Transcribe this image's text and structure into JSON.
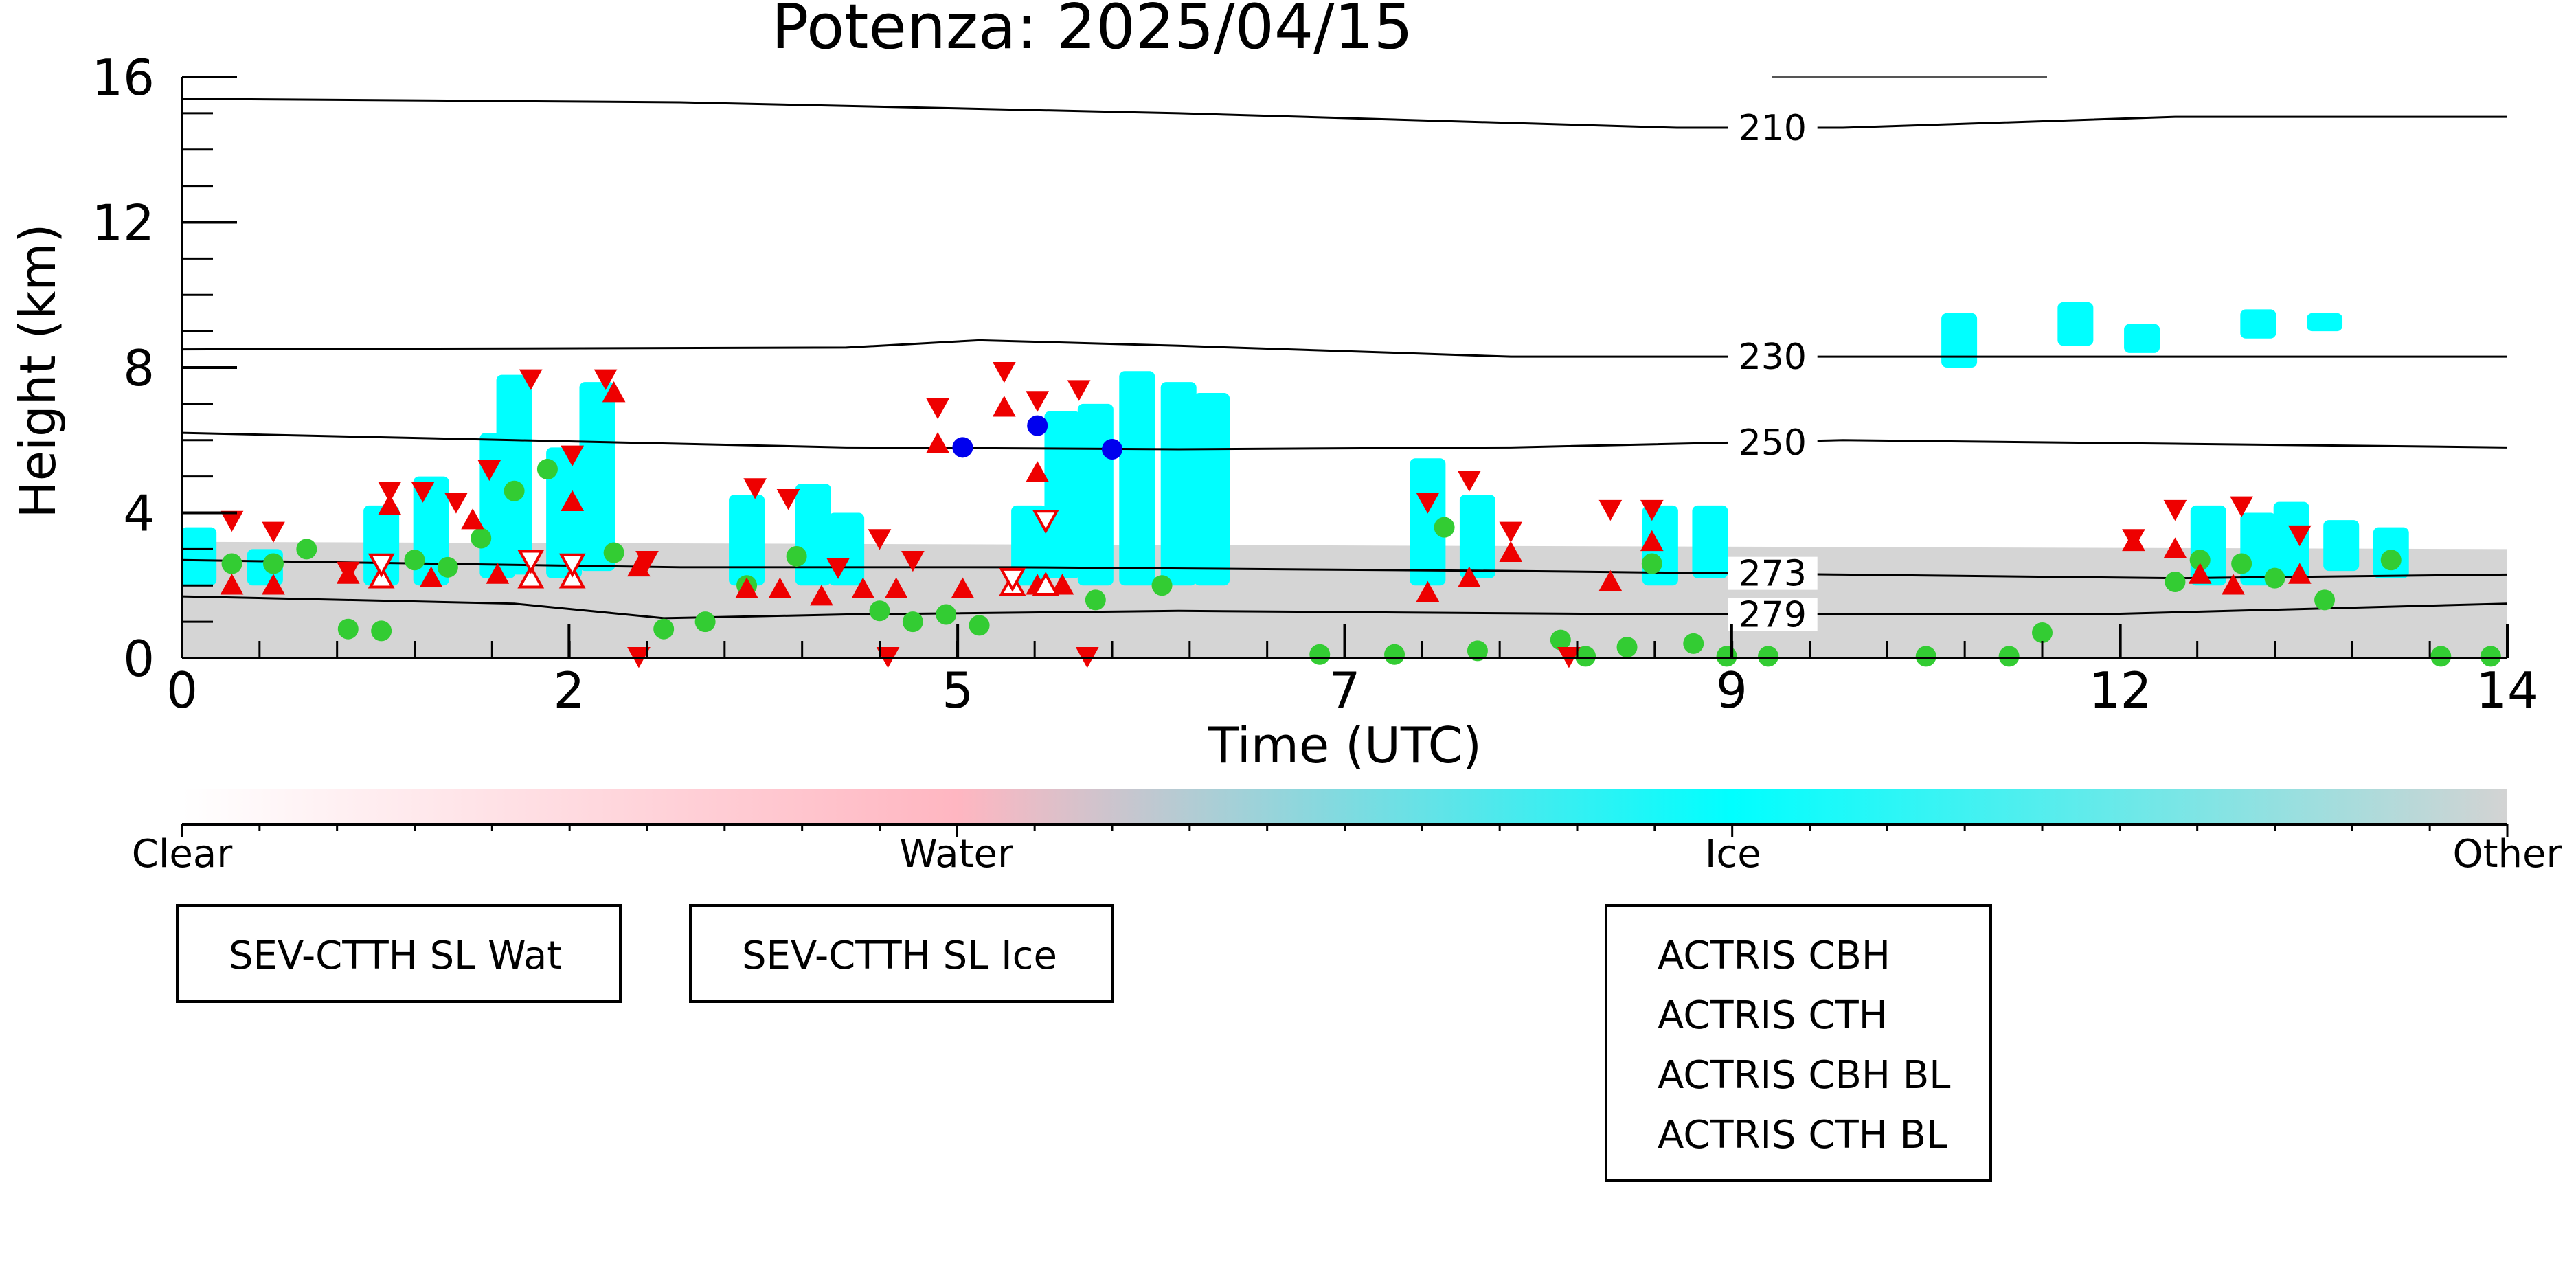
{
  "chart_data": {
    "type": "scatter",
    "title": "Potenza: 2025/04/15",
    "xlabel": "Time (UTC)",
    "ylabel": "Height (km)",
    "xlim": [
      0,
      14
    ],
    "ylim": [
      0,
      16
    ],
    "x_ticks": [
      {
        "value": 0,
        "label": "0"
      },
      {
        "value": 2.33,
        "label": "2"
      },
      {
        "value": 4.67,
        "label": "5"
      },
      {
        "value": 7.0,
        "label": "7"
      },
      {
        "value": 9.33,
        "label": "9"
      },
      {
        "value": 11.67,
        "label": "12"
      },
      {
        "value": 14.0,
        "label": "14"
      }
    ],
    "y_ticks": [
      {
        "value": 0,
        "label": "0"
      },
      {
        "value": 4,
        "label": "4"
      },
      {
        "value": 8,
        "label": "8"
      },
      {
        "value": 12,
        "label": "12"
      },
      {
        "value": 16,
        "label": "16"
      }
    ],
    "grid": false,
    "colorbar": {
      "labels": [
        {
          "value": 0,
          "label": "Clear"
        },
        {
          "value": 0.333,
          "label": "Water"
        },
        {
          "value": 0.667,
          "label": "Ice"
        },
        {
          "value": 1.0,
          "label": "Other"
        }
      ],
      "colors": [
        "#ffffff",
        "#ffb6c1",
        "#00ffff",
        "#d3d3d3"
      ]
    },
    "temperature_contours": [
      {
        "label": "210",
        "label_x": 9.35,
        "points": [
          [
            0,
            15.4
          ],
          [
            3,
            15.3
          ],
          [
            6,
            15.0
          ],
          [
            9,
            14.6
          ],
          [
            10,
            14.6
          ],
          [
            12,
            14.9
          ],
          [
            14,
            14.9
          ]
        ]
      },
      {
        "label": "230",
        "label_x": 9.35,
        "points": [
          [
            0,
            8.5
          ],
          [
            4,
            8.55
          ],
          [
            4.8,
            8.75
          ],
          [
            6,
            8.6
          ],
          [
            8,
            8.3
          ],
          [
            10,
            8.3
          ],
          [
            14,
            8.3
          ]
        ]
      },
      {
        "label": "250",
        "label_x": 9.35,
        "points": [
          [
            0,
            6.2
          ],
          [
            2,
            6.0
          ],
          [
            4,
            5.8
          ],
          [
            6,
            5.75
          ],
          [
            8,
            5.8
          ],
          [
            10,
            6.0
          ],
          [
            12,
            5.9
          ],
          [
            14,
            5.8
          ]
        ]
      },
      {
        "label": "273",
        "label_x": 9.35,
        "points": [
          [
            0,
            2.7
          ],
          [
            3,
            2.5
          ],
          [
            5,
            2.5
          ],
          [
            8,
            2.4
          ],
          [
            10,
            2.3
          ],
          [
            12,
            2.2
          ],
          [
            14,
            2.3
          ]
        ]
      },
      {
        "label": "279",
        "label_x": 9.35,
        "points": [
          [
            0,
            1.7
          ],
          [
            2,
            1.5
          ],
          [
            2.9,
            1.1
          ],
          [
            4,
            1.2
          ],
          [
            6,
            1.3
          ],
          [
            9,
            1.2
          ],
          [
            11.5,
            1.2
          ],
          [
            14,
            1.5
          ]
        ]
      }
    ],
    "cloud_mask": {
      "other_layer": [
        [
          0,
          0,
          3.2
        ],
        [
          14,
          0,
          3.0
        ]
      ],
      "ice_regions": [
        [
          0.1,
          2.0,
          3.6
        ],
        [
          0.5,
          2.0,
          3.0
        ],
        [
          1.2,
          2.0,
          4.2
        ],
        [
          1.5,
          2.0,
          5.0
        ],
        [
          1.9,
          2.2,
          6.2
        ],
        [
          2.0,
          2.3,
          7.8
        ],
        [
          2.3,
          2.2,
          5.8
        ],
        [
          2.5,
          2.4,
          7.6
        ],
        [
          3.4,
          2.0,
          4.5
        ],
        [
          3.8,
          2.0,
          4.8
        ],
        [
          4.0,
          2.0,
          4.0
        ],
        [
          5.1,
          2.0,
          4.2
        ],
        [
          5.3,
          2.2,
          6.8
        ],
        [
          5.5,
          2.0,
          7.0
        ],
        [
          5.75,
          2.0,
          7.9
        ],
        [
          6.0,
          2.0,
          7.6
        ],
        [
          6.2,
          2.0,
          7.3
        ],
        [
          7.5,
          2.0,
          5.5
        ],
        [
          7.8,
          2.2,
          4.5
        ],
        [
          8.9,
          2.0,
          4.2
        ],
        [
          9.2,
          2.2,
          4.2
        ],
        [
          10.7,
          8.0,
          9.5
        ],
        [
          11.4,
          8.6,
          9.8
        ],
        [
          11.8,
          8.4,
          9.2
        ],
        [
          12.2,
          2.0,
          4.2
        ],
        [
          12.5,
          2.0,
          4.0
        ],
        [
          12.7,
          2.2,
          4.3
        ],
        [
          13.0,
          2.4,
          3.8
        ],
        [
          13.3,
          2.2,
          3.6
        ],
        [
          12.5,
          8.8,
          9.6
        ],
        [
          12.9,
          9.0,
          9.5
        ]
      ]
    },
    "series": [
      {
        "name": "SEV-CTTH SL Wat",
        "marker": "circle",
        "color": "#33cc33",
        "points": [
          [
            0.3,
            2.6
          ],
          [
            0.55,
            2.6
          ],
          [
            0.75,
            3.0
          ],
          [
            1.0,
            0.8
          ],
          [
            1.2,
            0.75
          ],
          [
            1.4,
            2.7
          ],
          [
            1.6,
            2.5
          ],
          [
            1.8,
            3.3
          ],
          [
            2.0,
            4.6
          ],
          [
            2.2,
            5.2
          ],
          [
            2.6,
            2.9
          ],
          [
            2.9,
            0.8
          ],
          [
            3.15,
            1.0
          ],
          [
            3.4,
            2.0
          ],
          [
            3.7,
            2.8
          ],
          [
            4.2,
            1.3
          ],
          [
            4.4,
            1.0
          ],
          [
            4.6,
            1.2
          ],
          [
            4.8,
            0.9
          ],
          [
            5.5,
            1.6
          ],
          [
            5.9,
            2.0
          ],
          [
            6.85,
            0.1
          ],
          [
            7.3,
            0.1
          ],
          [
            7.6,
            3.6
          ],
          [
            7.8,
            0.2
          ],
          [
            8.3,
            0.5
          ],
          [
            8.45,
            0.05
          ],
          [
            8.7,
            0.3
          ],
          [
            8.85,
            2.6
          ],
          [
            9.1,
            0.4
          ],
          [
            9.3,
            0.05
          ],
          [
            9.55,
            0.05
          ],
          [
            10.5,
            0.05
          ],
          [
            11.0,
            0.05
          ],
          [
            11.2,
            0.7
          ],
          [
            12.0,
            2.1
          ],
          [
            12.15,
            2.7
          ],
          [
            12.4,
            2.6
          ],
          [
            12.6,
            2.2
          ],
          [
            12.9,
            1.6
          ],
          [
            13.3,
            2.7
          ],
          [
            13.6,
            0.05
          ],
          [
            13.9,
            0.05
          ]
        ]
      },
      {
        "name": "SEV-CTTH SL Ice",
        "marker": "circle",
        "color": "#0000ee",
        "points": [
          [
            4.7,
            5.8
          ],
          [
            5.15,
            6.4
          ],
          [
            5.6,
            5.75
          ]
        ]
      },
      {
        "name": "ACTRIS CBH",
        "marker": "triangle-up",
        "color": "#ee0000",
        "points": [
          [
            0.3,
            2.0
          ],
          [
            0.55,
            2.0
          ],
          [
            1.0,
            2.3
          ],
          [
            1.25,
            4.2
          ],
          [
            1.5,
            2.2
          ],
          [
            1.75,
            3.8
          ],
          [
            1.9,
            2.3
          ],
          [
            2.1,
            2.2
          ],
          [
            2.35,
            4.3
          ],
          [
            2.6,
            7.3
          ],
          [
            2.75,
            2.5
          ],
          [
            3.4,
            1.9
          ],
          [
            3.6,
            1.9
          ],
          [
            3.85,
            1.7
          ],
          [
            4.1,
            1.9
          ],
          [
            4.3,
            1.9
          ],
          [
            4.55,
            5.9
          ],
          [
            4.7,
            1.9
          ],
          [
            4.95,
            6.9
          ],
          [
            5.15,
            5.1
          ],
          [
            5.3,
            2.0
          ],
          [
            7.5,
            1.8
          ],
          [
            7.75,
            2.2
          ],
          [
            8.0,
            2.9
          ],
          [
            8.6,
            2.1
          ],
          [
            8.85,
            3.2
          ],
          [
            11.75,
            3.2
          ],
          [
            12.0,
            3.0
          ],
          [
            12.15,
            2.3
          ],
          [
            12.35,
            2.0
          ],
          [
            12.75,
            2.3
          ],
          [
            5.15,
            2.0
          ]
        ]
      },
      {
        "name": "ACTRIS CTH",
        "marker": "triangle-down",
        "color": "#ee0000",
        "points": [
          [
            0.3,
            3.8
          ],
          [
            0.55,
            3.5
          ],
          [
            1.0,
            2.4
          ],
          [
            1.25,
            4.6
          ],
          [
            1.45,
            4.6
          ],
          [
            1.65,
            4.3
          ],
          [
            1.85,
            5.2
          ],
          [
            2.1,
            7.7
          ],
          [
            2.35,
            5.6
          ],
          [
            2.55,
            7.7
          ],
          [
            2.8,
            2.7
          ],
          [
            3.45,
            4.7
          ],
          [
            3.65,
            4.4
          ],
          [
            3.95,
            2.5
          ],
          [
            4.2,
            3.3
          ],
          [
            4.4,
            2.7
          ],
          [
            4.55,
            6.9
          ],
          [
            4.95,
            7.9
          ],
          [
            5.15,
            7.1
          ],
          [
            5.4,
            7.4
          ],
          [
            7.5,
            4.3
          ],
          [
            7.75,
            4.9
          ],
          [
            8.0,
            3.5
          ],
          [
            8.6,
            4.1
          ],
          [
            8.85,
            4.1
          ],
          [
            11.75,
            3.3
          ],
          [
            12.0,
            4.1
          ],
          [
            12.4,
            4.2
          ],
          [
            12.75,
            3.4
          ],
          [
            2.75,
            0.05
          ],
          [
            4.25,
            0.05
          ],
          [
            5.45,
            0.05
          ],
          [
            8.35,
            0.05
          ]
        ]
      },
      {
        "name": "ACTRIS CBH BL",
        "marker": "triangle-up-open",
        "color": "#ee0000",
        "points": [
          [
            1.2,
            2.2
          ],
          [
            2.1,
            2.2
          ],
          [
            2.35,
            2.2
          ],
          [
            5.0,
            2.0
          ],
          [
            5.2,
            2.0
          ]
        ]
      },
      {
        "name": "ACTRIS CTH BL",
        "marker": "triangle-down-open",
        "color": "#ee0000",
        "points": [
          [
            1.2,
            2.6
          ],
          [
            2.1,
            2.7
          ],
          [
            2.35,
            2.6
          ],
          [
            5.0,
            2.2
          ],
          [
            5.2,
            3.8
          ]
        ]
      }
    ],
    "legend_boxes": [
      {
        "entries": [
          "SEV-CTTH SL Wat"
        ],
        "placement": "bottom-left"
      },
      {
        "entries": [
          "SEV-CTTH SL Ice"
        ],
        "placement": "bottom-left"
      },
      {
        "entries": [
          "ACTRIS CBH",
          "ACTRIS CTH",
          "ACTRIS CBH BL",
          "ACTRIS CTH BL"
        ],
        "placement": "bottom-center"
      }
    ]
  }
}
